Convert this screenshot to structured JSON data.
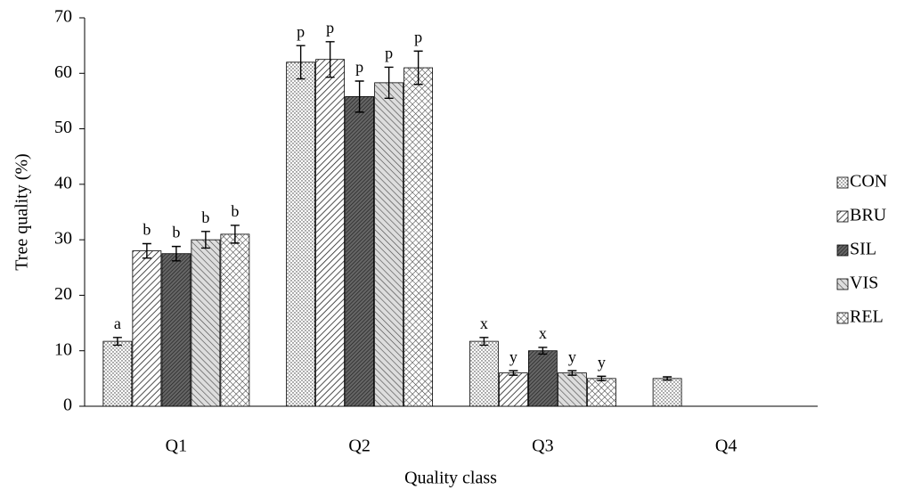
{
  "chart_data": {
    "type": "bar",
    "y_label": "Tree quality (%)",
    "x_label": "Quality class",
    "categories": [
      "Q1",
      "Q2",
      "Q3",
      "Q4"
    ],
    "ylim": [
      0,
      70
    ],
    "yticks": [
      0,
      10,
      20,
      30,
      40,
      50,
      60,
      70
    ],
    "grid": false,
    "legend": "right",
    "series": [
      {
        "name": "CON",
        "color": "#ffffff",
        "pattern": "dots",
        "values": [
          11.7,
          62,
          11.7,
          5
        ],
        "errors": [
          0.7,
          3,
          0.7,
          0.3
        ],
        "letters": [
          "a",
          "p",
          "x",
          null
        ]
      },
      {
        "name": "BRU",
        "color": "#ffffff",
        "pattern": "diagonal",
        "values": [
          28,
          62.5,
          6,
          null
        ],
        "errors": [
          1.3,
          3.2,
          0.4,
          null
        ],
        "letters": [
          "b",
          "p",
          "y",
          null
        ]
      },
      {
        "name": "SIL",
        "color": "#555555",
        "pattern": "dense",
        "values": [
          27.5,
          55.8,
          10,
          null
        ],
        "errors": [
          1.3,
          2.8,
          0.6,
          null
        ],
        "letters": [
          "b",
          "p",
          "x",
          null
        ]
      },
      {
        "name": "VIS",
        "color": "#ffffff",
        "pattern": "diagonal-light",
        "values": [
          30,
          58.3,
          6,
          null
        ],
        "errors": [
          1.5,
          2.8,
          0.4,
          null
        ],
        "letters": [
          "b",
          "p",
          "y",
          null
        ]
      },
      {
        "name": "REL",
        "color": "#ffffff",
        "pattern": "cross",
        "values": [
          31,
          61,
          5,
          null
        ],
        "errors": [
          1.6,
          3,
          0.4,
          null
        ],
        "letters": [
          "b",
          "p",
          "y",
          null
        ]
      }
    ]
  }
}
